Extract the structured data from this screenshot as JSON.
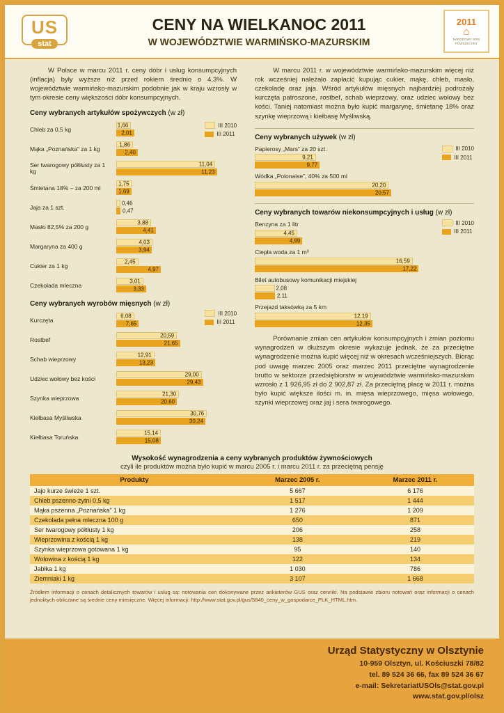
{
  "header": {
    "title": "CENY NA WIELKANOC 2011",
    "subtitle": "W WOJEWÓDZTWIE WARMIŃSKO-MAZURSKIM"
  },
  "logo": {
    "top": "US",
    "bottom": "stat"
  },
  "badge": {
    "year": "2011",
    "house": "⌂",
    "label": "NARODOWY SPIS POWSZECHNY"
  },
  "intro": {
    "left": "W Polsce w marcu 2011 r. ceny dóbr i usług konsumpcyjnych (inflacja) były wyższe niż przed rokiem średnio o 4,3%. W województwie warmińsko-mazurskim podobnie jak w kraju wzrosły w tym okresie ceny większości dóbr konsumpcyjnych.",
    "right": "W marcu 2011 r. w województwie warmińsko-mazurskim więcej niż rok wcześniej należało zapłacić kupując cukier, mąkę, chleb, masło, czekoladę oraz jaja. Wśród artykułów mięsnych najbardziej podrożały kurczęta patroszone, rostbef, schab wieprzowy, oraz udziec wołowy bez kości. Taniej natomiast można było kupić margarynę, śmietanę 18% oraz szynkę wieprzową i kiełbasę Myśliwską.",
    "comparison": "Porównanie zmian cen artykułów konsumpcyjnych i zmian poziomu wynagrodzeń w dłuższym okresie wykazuje jednak, że za przeciętne wynagrodzenie można kupić więcej niż w okresach wcześniejszych. Biorąc pod uwagę marzec 2005 oraz marzec 2011 przeciętne wynagrodzenie brutto w sektorze przedsiębiorstw w województwie warmińsko-mazurskim wzrosło z 1 926,95 zł do 2 902,87 zł. Za przeciętną płacę w 2011 r. można było kupić większe ilości m. in. mięsa wieprzowego, mięsa wołowego, szynki wieprzowej oraz jaj i sera twarogowego."
  },
  "legend": {
    "s2010": "III 2010",
    "s2011": "III 2011",
    "c2010": "#F7E2A0",
    "c2011": "#E9A31E"
  },
  "chart_data": [
    {
      "type": "bar",
      "title": "Ceny wybranych artykułów spożywczych",
      "title_suffix": " (w zł)",
      "unit": "zł",
      "series": [
        "III 2010",
        "III 2011"
      ],
      "layout": "left",
      "axis_max": 11.8,
      "items": [
        {
          "label": "Chleb za 0,5 kg",
          "v2010": 1.66,
          "v2011": 2.01,
          "d2010": "1,66",
          "d2011": "2,01"
        },
        {
          "label": "Mąka „Poznańska” za 1 kg",
          "v2010": 1.86,
          "v2011": 2.4,
          "d2010": "1,86",
          "d2011": "2,40"
        },
        {
          "label": "Ser twarogowy półtłusty za 1 kg",
          "v2010": 11.04,
          "v2011": 11.23,
          "d2010": "11,04",
          "d2011": "11,23"
        },
        {
          "label": "Śmietana 18% – za 200 ml",
          "v2010": 1.75,
          "v2011": 1.69,
          "d2010": "1,75",
          "d2011": "1,69"
        },
        {
          "label": "Jaja za 1 szt.",
          "v2010": 0.46,
          "v2011": 0.47,
          "d2010": "0,46",
          "d2011": "0,47"
        },
        {
          "label": "Masło 82,5% za 200 g",
          "v2010": 3.88,
          "v2011": 4.41,
          "d2010": "3,88",
          "d2011": "4,41"
        },
        {
          "label": "Margaryna za 400 g",
          "v2010": 4.03,
          "v2011": 3.94,
          "d2010": "4,03",
          "d2011": "3,94"
        },
        {
          "label": "Cukier za 1 kg",
          "v2010": 2.45,
          "v2011": 4.97,
          "d2010": "2,45",
          "d2011": "4,97"
        },
        {
          "label": "Czekolada mleczna",
          "v2010": 3.01,
          "v2011": 3.33,
          "d2010": "3,01",
          "d2011": "3,33"
        }
      ]
    },
    {
      "type": "bar",
      "title": "Ceny wybranych wyrobów mięsnych",
      "title_suffix": " (w zł)",
      "unit": "zł",
      "series": [
        "III 2010",
        "III 2011"
      ],
      "layout": "left",
      "axis_max": 31.2,
      "items": [
        {
          "label": "Kurczęta",
          "v2010": 6.08,
          "v2011": 7.65,
          "d2010": "6,08",
          "d2011": "7,65"
        },
        {
          "label": "Rostbef",
          "v2010": 20.59,
          "v2011": 21.65,
          "d2010": "20,59",
          "d2011": "21,65"
        },
        {
          "label": "Schab wieprzowy",
          "v2010": 12.91,
          "v2011": 13.23,
          "d2010": "12,91",
          "d2011": "13,23"
        },
        {
          "label": "Udziec wołowy bez kości",
          "v2010": 29.0,
          "v2011": 29.43,
          "d2010": "29,00",
          "d2011": "29,43"
        },
        {
          "label": "Szynka wieprzowa",
          "v2010": 21.3,
          "v2011": 20.6,
          "d2010": "21,30",
          "d2011": "20,60"
        },
        {
          "label": "Kiełbasa Myśliwska",
          "v2010": 30.76,
          "v2011": 30.24,
          "d2010": "30,76",
          "d2011": "30,24"
        },
        {
          "label": "Kiełbasa Toruńska",
          "v2010": 15.14,
          "v2011": 15.08,
          "d2010": "15,14",
          "d2011": "15,08"
        }
      ]
    },
    {
      "type": "bar",
      "title": "Ceny wybranych używek",
      "title_suffix": " (w zł)",
      "unit": "zł",
      "series": [
        "III 2010",
        "III 2011"
      ],
      "layout": "top",
      "axis_max": 21,
      "items": [
        {
          "label": "Papierosy „Mars” za 20 szt.",
          "v2010": 9.21,
          "v2011": 9.77,
          "d2010": "9,21",
          "d2011": "9,77"
        },
        {
          "label": "Wódka „Polonaise”, 40% za 500 ml",
          "v2010": 20.2,
          "v2011": 20.57,
          "d2010": "20,20",
          "d2011": "20,57"
        }
      ]
    },
    {
      "type": "bar",
      "title": "Ceny wybranych towarów niekonsumpcyjnych i usług",
      "title_suffix": " (w zł)",
      "unit": "zł",
      "series": [
        "III 2010",
        "III 2011"
      ],
      "layout": "top",
      "axis_max": 18,
      "items": [
        {
          "label": "Benzyna za 1 litr",
          "v2010": 4.45,
          "v2011": 4.99,
          "d2010": "4,45",
          "d2011": "4,99"
        },
        {
          "label": "Ciepła woda za 1 m³",
          "v2010": 16.59,
          "v2011": 17.22,
          "d2010": "16,59",
          "d2011": "17,22"
        },
        {
          "label": "Bilet autobusowy komunikacji miejskiej",
          "v2010": 2.08,
          "v2011": 2.11,
          "d2010": "2,08",
          "d2011": "2,11"
        },
        {
          "label": "Przejazd taksówką za 5 km",
          "v2010": 12.19,
          "v2011": 12.35,
          "d2010": "12,19",
          "d2011": "12,35"
        }
      ]
    }
  ],
  "table": {
    "title": "Wysokość wynagrodzenia a ceny wybranych produktów żywnościowych",
    "subtitle": "czyli ile produktów można było kupić w marcu 2005 r. i marcu 2011 r. za przeciętną pensję",
    "headers": [
      "Produkty",
      "Marzec 2005 r.",
      "Marzec 2011 r."
    ],
    "rows": [
      [
        "Jajo kurze świeże 1 szt.",
        "5 667",
        "6 176"
      ],
      [
        "Chleb pszenno-żytni 0,5 kg",
        "1 517",
        "1 444"
      ],
      [
        "Mąka pszenna „Poznańska” 1 kg",
        "1 276",
        "1 209"
      ],
      [
        "Czekolada pełna mleczna 100 g",
        "650",
        "871"
      ],
      [
        "Ser twarogowy półtłusty 1 kg",
        "206",
        "258"
      ],
      [
        "Wieprzowina z kością 1 kg",
        "138",
        "219"
      ],
      [
        "Szynka wieprzowa gotowana 1 kg",
        "95",
        "140"
      ],
      [
        "Wołowina z kością 1 kg",
        "122",
        "134"
      ],
      [
        "Jabłka 1 kg",
        "1 030",
        "786"
      ],
      [
        "Ziemniaki 1 kg",
        "3 107",
        "1 668"
      ]
    ]
  },
  "source_note": "Źródłem informacji o cenach detalicznych towarów i usług są: notowania cen dokonywane przez ankieterów GUS oraz cenniki. Na podstawie zbioru notowań oraz informacji o cenach jednolitych obliczane są średnie ceny miesięczne. Więcej informacji: http://www.stat.gov.pl/gus/5840_ceny_w_gospodarce_PLK_HTML.htm.",
  "footer": {
    "name": "Urząd Statystyczny w Olsztynie",
    "address": "10-959 Olsztyn, ul. Kościuszki 78/82",
    "phone": "tel. 89 524 36 66, fax 89 524 36 67",
    "email": "e-mail: SekretariatUSOls@stat.gov.pl",
    "web": "www.stat.gov.pl/olsz"
  }
}
